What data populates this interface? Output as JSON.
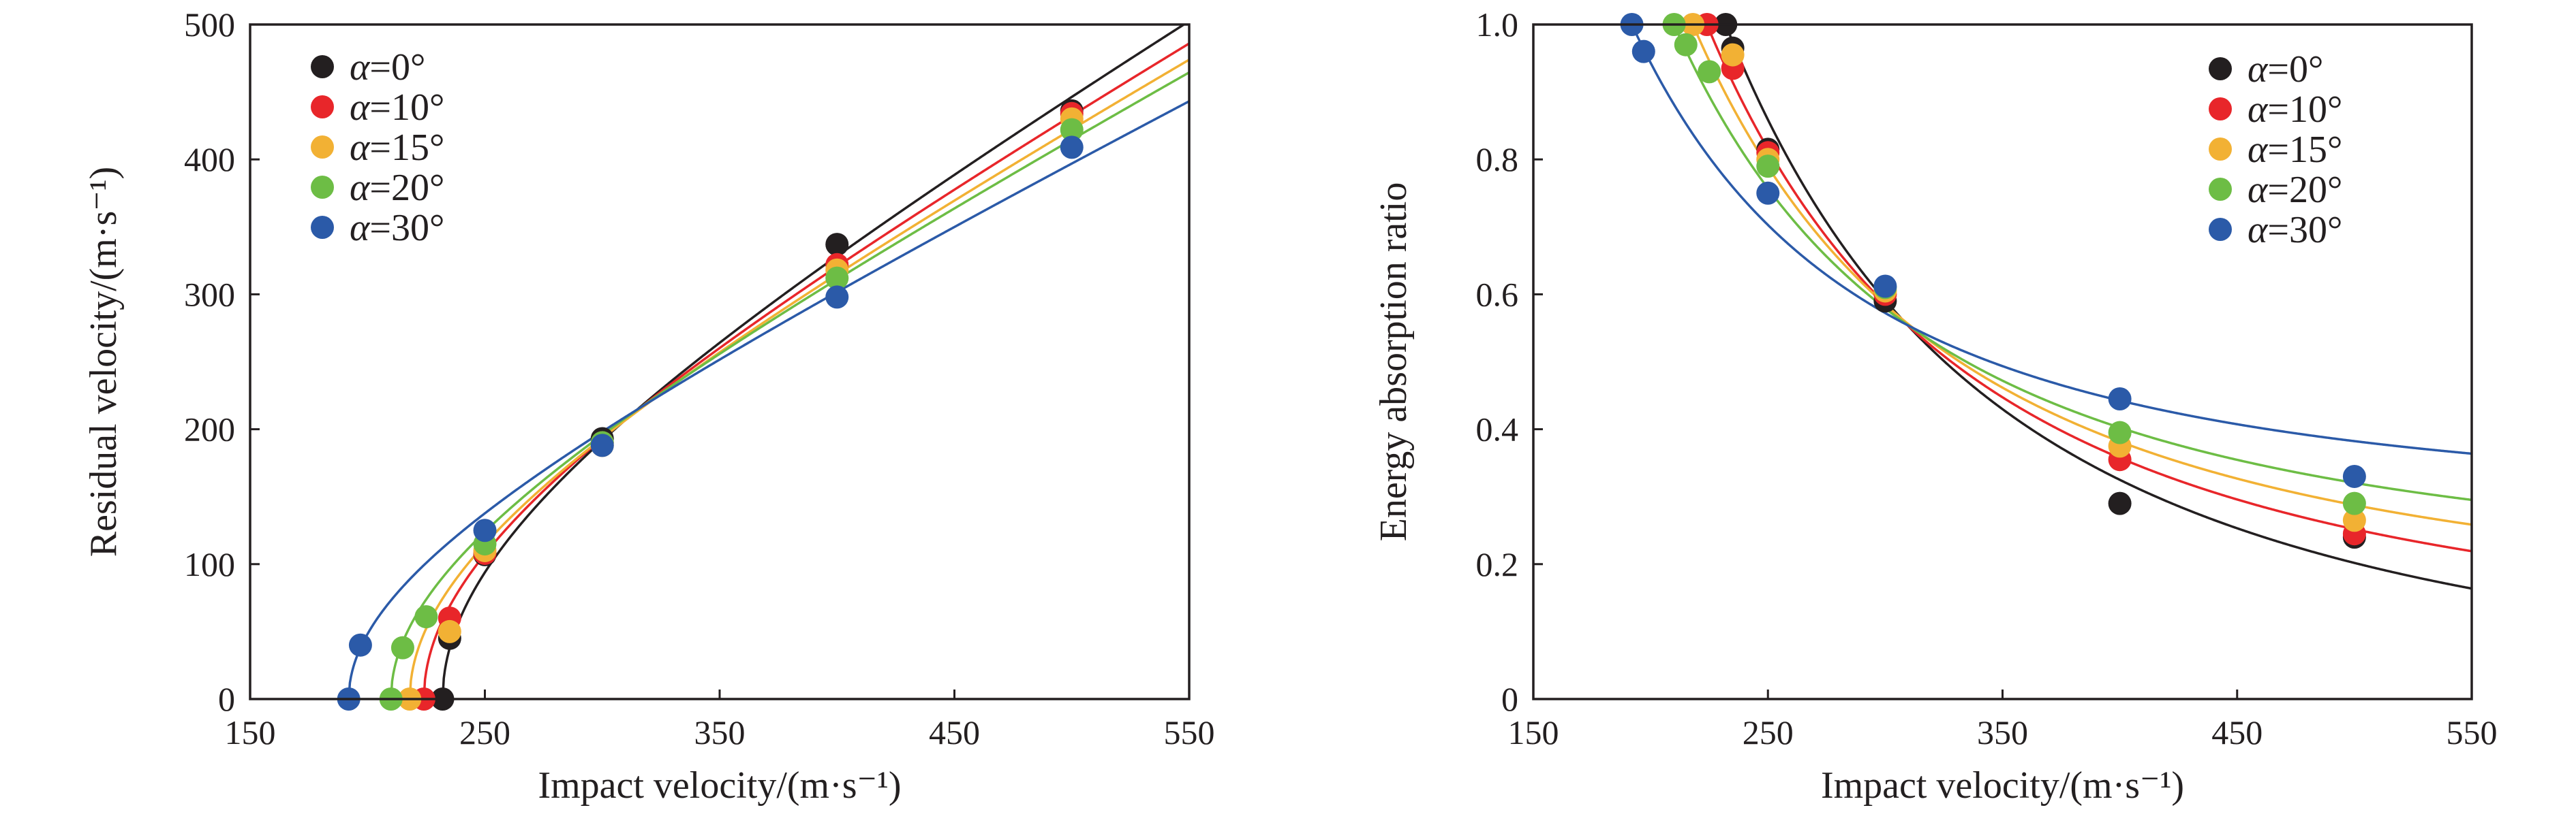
{
  "chart_data": [
    {
      "type": "scatter",
      "xlabel": "Impact velocity/(m·s⁻¹)",
      "ylabel": "Residual velocity/(m·s⁻¹)",
      "xlim": [
        150,
        550
      ],
      "ylim": [
        0,
        500
      ],
      "xticks": [
        150,
        250,
        350,
        450,
        550
      ],
      "yticks": [
        0,
        100,
        200,
        300,
        400,
        500
      ],
      "xtick_labels": [
        "150",
        "250",
        "350",
        "450",
        "550"
      ],
      "ytick_labels": [
        "0",
        "100",
        "200",
        "300",
        "400",
        "500"
      ],
      "legend_position": "top-left",
      "grid": false,
      "fit_lines": true,
      "series": [
        {
          "name": "α=0°",
          "alpha": "α",
          "rest": "=0°",
          "color": "#231f20",
          "v_bl": 232,
          "points": [
            [
              232,
              0
            ],
            [
              235,
              45
            ],
            [
              250,
              107
            ],
            [
              300,
              193
            ],
            [
              400,
              337
            ],
            [
              500,
              436
            ]
          ]
        },
        {
          "name": "α=10°",
          "alpha": "α",
          "rest": "=10°",
          "color": "#e8262a",
          "v_bl": 224,
          "points": [
            [
              224,
              0
            ],
            [
              235,
              60
            ],
            [
              250,
              108
            ],
            [
              300,
              190
            ],
            [
              400,
              322
            ],
            [
              500,
              434
            ]
          ]
        },
        {
          "name": "α=15°",
          "alpha": "α",
          "rest": "=15°",
          "color": "#f2b134",
          "v_bl": 218,
          "points": [
            [
              218,
              0
            ],
            [
              235,
              50
            ],
            [
              250,
              110
            ],
            [
              300,
              188
            ],
            [
              400,
              318
            ],
            [
              500,
              430
            ]
          ]
        },
        {
          "name": "α=20°",
          "alpha": "α",
          "rest": "=20°",
          "color": "#6dbd45",
          "v_bl": 210,
          "points": [
            [
              210,
              0
            ],
            [
              215,
              38
            ],
            [
              225,
              61
            ],
            [
              250,
              115
            ],
            [
              300,
              190
            ],
            [
              400,
              312
            ],
            [
              500,
              422
            ]
          ]
        },
        {
          "name": "α=30°",
          "alpha": "α",
          "rest": "=30°",
          "color": "#2b5aa8",
          "v_bl": 192,
          "points": [
            [
              192,
              0
            ],
            [
              197,
              40
            ],
            [
              250,
              125
            ],
            [
              300,
              188
            ],
            [
              400,
              298
            ],
            [
              500,
              409
            ]
          ]
        }
      ]
    },
    {
      "type": "scatter",
      "xlabel": "Impact velocity/(m·s⁻¹)",
      "ylabel": "Energy absorption ratio",
      "xlim": [
        150,
        550
      ],
      "ylim": [
        0,
        1.0
      ],
      "xticks": [
        150,
        250,
        350,
        450,
        550
      ],
      "yticks": [
        0,
        0.2,
        0.4,
        0.6,
        0.8,
        1.0
      ],
      "xtick_labels": [
        "150",
        "250",
        "350",
        "450",
        "550"
      ],
      "ytick_labels": [
        "0",
        "0.2",
        "0.4",
        "0.6",
        "0.8",
        "1.0"
      ],
      "legend_position": "top-right",
      "grid": false,
      "fit_lines": true,
      "series": [
        {
          "name": "α=0°",
          "alpha": "α",
          "rest": "=0°",
          "color": "#231f20",
          "v_bl": 232,
          "points": [
            [
              232,
              1.0
            ],
            [
              235,
              0.965
            ],
            [
              250,
              0.815
            ],
            [
              300,
              0.59
            ],
            [
              400,
              0.29
            ],
            [
              500,
              0.24
            ]
          ]
        },
        {
          "name": "α=10°",
          "alpha": "α",
          "rest": "=10°",
          "color": "#e8262a",
          "v_bl": 224,
          "points": [
            [
              224,
              1.0
            ],
            [
              235,
              0.935
            ],
            [
              250,
              0.81
            ],
            [
              300,
              0.6
            ],
            [
              400,
              0.355
            ],
            [
              500,
              0.245
            ]
          ]
        },
        {
          "name": "α=15°",
          "alpha": "α",
          "rest": "=15°",
          "color": "#f2b134",
          "v_bl": 218,
          "points": [
            [
              218,
              1.0
            ],
            [
              235,
              0.955
            ],
            [
              250,
              0.8
            ],
            [
              300,
              0.605
            ],
            [
              400,
              0.375
            ],
            [
              500,
              0.265
            ]
          ]
        },
        {
          "name": "α=20°",
          "alpha": "α",
          "rest": "=20°",
          "color": "#6dbd45",
          "v_bl": 210,
          "points": [
            [
              210,
              1.0
            ],
            [
              215,
              0.97
            ],
            [
              225,
              0.93
            ],
            [
              250,
              0.79
            ],
            [
              300,
              0.61
            ],
            [
              400,
              0.395
            ],
            [
              500,
              0.29
            ]
          ]
        },
        {
          "name": "α=30°",
          "alpha": "α",
          "rest": "=30°",
          "color": "#2b5aa8",
          "v_bl": 192,
          "points": [
            [
              192,
              1.0
            ],
            [
              197,
              0.96
            ],
            [
              250,
              0.75
            ],
            [
              300,
              0.612
            ],
            [
              400,
              0.445
            ],
            [
              500,
              0.33
            ]
          ]
        }
      ]
    }
  ]
}
